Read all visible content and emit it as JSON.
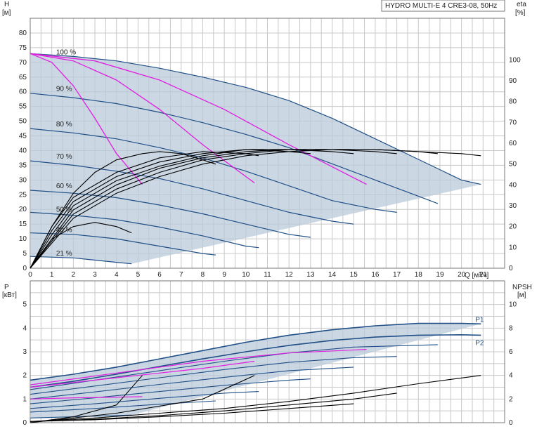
{
  "chart_data": [
    {
      "type": "line",
      "title": "HYDRO MULTI-E 4 CRE3-08, 50Hz",
      "xlabel": "Q [м³/ч]",
      "ylabel": "H",
      "ylabel_unit": "[м]",
      "y2label": "eta",
      "y2label_unit": "[%]",
      "xlim": [
        0,
        22
      ],
      "ylim": [
        0,
        85
      ],
      "y2lim": [
        0,
        120
      ],
      "x_ticks": [
        0,
        1,
        2,
        3,
        4,
        5,
        6,
        7,
        8,
        9,
        10,
        11,
        12,
        13,
        14,
        15,
        16,
        17,
        18,
        19,
        20,
        21
      ],
      "y_ticks": [
        0,
        5,
        10,
        15,
        20,
        25,
        30,
        35,
        40,
        45,
        50,
        55,
        60,
        65,
        70,
        75,
        80
      ],
      "y2_ticks": [
        0,
        10,
        20,
        30,
        40,
        50,
        60,
        70,
        80,
        90,
        100
      ],
      "grid": true,
      "speed_labels": [
        {
          "text": "100 %",
          "x": 1.2,
          "y": 72.5
        },
        {
          "text": "90 %",
          "x": 1.2,
          "y": 60
        },
        {
          "text": "80 %",
          "x": 1.2,
          "y": 48
        },
        {
          "text": "70 %",
          "x": 1.2,
          "y": 37
        },
        {
          "text": "60 %",
          "x": 1.2,
          "y": 27
        },
        {
          "text": "50 %",
          "x": 1.2,
          "y": 19
        },
        {
          "text": "40 %",
          "x": 1.2,
          "y": 12
        },
        {
          "text": "21 %",
          "x": 1.2,
          "y": 4
        }
      ],
      "series": [
        {
          "x": [
            0,
            2,
            4,
            6,
            8,
            10,
            12,
            14,
            16,
            18,
            20,
            20.9
          ],
          "values": [
            73,
            72,
            70.5,
            68,
            65,
            61.5,
            57,
            51,
            44,
            37,
            30,
            28.5
          ]
        },
        {
          "x": [
            0,
            2,
            4,
            6,
            8,
            10,
            12,
            14,
            16,
            18,
            18.9
          ],
          "values": [
            59.5,
            58,
            56,
            53,
            49.5,
            45.5,
            41,
            35.5,
            30,
            24.5,
            22
          ]
        },
        {
          "x": [
            0,
            2,
            4,
            6,
            8,
            10,
            12,
            14,
            16,
            17
          ],
          "values": [
            47.5,
            46,
            44,
            41,
            37.5,
            33,
            28,
            23,
            20,
            19
          ]
        },
        {
          "x": [
            0,
            2,
            4,
            6,
            8,
            10,
            12,
            14,
            15
          ],
          "values": [
            36.5,
            35,
            33,
            30.5,
            27,
            23,
            19,
            16,
            15
          ]
        },
        {
          "x": [
            0,
            2,
            4,
            6,
            8,
            10,
            12,
            13
          ],
          "values": [
            26.5,
            25.5,
            24,
            21.5,
            18.5,
            15,
            11.5,
            10.5
          ]
        },
        {
          "x": [
            0,
            2,
            4,
            6,
            8,
            10,
            10.6
          ],
          "values": [
            19,
            18,
            16.5,
            14,
            11,
            7.5,
            7
          ]
        },
        {
          "x": [
            0,
            2,
            4,
            6,
            8,
            8.6
          ],
          "values": [
            12,
            11.5,
            10,
            7.5,
            5,
            4.5
          ]
        },
        {
          "x": [
            0,
            2,
            4,
            4.7
          ],
          "values": [
            4,
            3.5,
            2,
            1.5
          ]
        }
      ],
      "system_curves": [
        {
          "x": [
            0,
            1,
            2,
            3,
            4,
            5.2
          ],
          "values": [
            73,
            70,
            62,
            51,
            39,
            28.5
          ]
        },
        {
          "x": [
            0,
            2,
            4,
            6,
            8,
            10.4
          ],
          "values": [
            73,
            70.5,
            64,
            54,
            42,
            29
          ]
        },
        {
          "x": [
            0,
            3,
            6,
            9,
            12,
            15.6
          ],
          "values": [
            73,
            70.5,
            64,
            54,
            42,
            28.5
          ]
        }
      ],
      "efficiency_curves": [
        {
          "x": [
            0,
            1,
            2,
            3,
            4,
            4.7
          ],
          "values": [
            0,
            14,
            20,
            22,
            20,
            17
          ]
        },
        {
          "x": [
            0,
            1,
            2,
            3,
            4,
            5.2,
            6,
            7,
            8,
            8.6
          ],
          "values": [
            0,
            20,
            36,
            46,
            52,
            55,
            56,
            55,
            52,
            50
          ]
        },
        {
          "x": [
            0,
            1,
            2,
            4,
            6,
            8,
            10,
            10.6
          ],
          "values": [
            0,
            20,
            34,
            46,
            53,
            56,
            55,
            54
          ]
        },
        {
          "x": [
            0,
            1,
            2,
            4,
            6,
            8,
            10,
            12,
            13
          ],
          "values": [
            0,
            18,
            32,
            44,
            51,
            55,
            57,
            56,
            55
          ]
        },
        {
          "x": [
            0,
            1,
            2,
            4,
            6,
            8,
            10,
            12,
            14,
            15
          ],
          "values": [
            0,
            16,
            30,
            42,
            49,
            54,
            57,
            57,
            56,
            55
          ]
        },
        {
          "x": [
            0,
            1,
            2,
            4,
            6,
            8,
            10,
            12,
            14,
            16,
            17
          ],
          "values": [
            0,
            14,
            28,
            40,
            48,
            53,
            56,
            57,
            57,
            56,
            55
          ]
        },
        {
          "x": [
            0,
            1,
            2,
            4,
            6,
            8,
            10,
            12,
            14,
            16,
            18,
            18.9
          ],
          "values": [
            0,
            13,
            26,
            38,
            46,
            52,
            55,
            57,
            57,
            57,
            56,
            55
          ]
        },
        {
          "x": [
            0,
            1,
            2,
            4,
            6,
            8,
            10,
            12,
            14,
            16,
            18,
            20,
            20.9
          ],
          "values": [
            0,
            12,
            24,
            36,
            44,
            50,
            54,
            56,
            57,
            57,
            56,
            55,
            54
          ]
        }
      ]
    },
    {
      "type": "line",
      "xlabel": "",
      "ylabel": "P",
      "ylabel_unit": "[кВт]",
      "y2label": "NPSH",
      "y2label_unit": "[м]",
      "xlim": [
        0,
        22
      ],
      "ylim": [
        0,
        6
      ],
      "y2lim": [
        0,
        12
      ],
      "y_ticks": [
        0,
        1,
        2,
        3,
        4,
        5
      ],
      "y2_ticks": [
        0,
        2,
        4,
        6,
        8,
        10
      ],
      "grid": true,
      "series": [
        {
          "name": "P1",
          "x": [
            0,
            2,
            4,
            6,
            8,
            10,
            12,
            14,
            16,
            18,
            20,
            20.9
          ],
          "values": [
            1.8,
            2.05,
            2.35,
            2.7,
            3.05,
            3.4,
            3.7,
            3.93,
            4.1,
            4.2,
            4.2,
            4.18
          ]
        },
        {
          "name": "P2",
          "x": [
            0,
            2,
            4,
            6,
            8,
            10,
            12,
            14,
            16,
            18,
            20,
            20.9
          ],
          "values": [
            1.5,
            1.75,
            2.05,
            2.38,
            2.7,
            3.0,
            3.27,
            3.48,
            3.62,
            3.7,
            3.72,
            3.7
          ]
        },
        {
          "x": [
            0,
            3,
            6,
            9,
            12,
            15,
            18.9
          ],
          "values": [
            1.4,
            1.8,
            2.2,
            2.6,
            2.95,
            3.2,
            3.3
          ]
        },
        {
          "x": [
            0,
            3,
            6,
            9,
            12,
            15,
            17
          ],
          "values": [
            1.2,
            1.55,
            1.9,
            2.25,
            2.55,
            2.75,
            2.8
          ]
        },
        {
          "x": [
            0,
            3,
            6,
            9,
            12,
            15
          ],
          "values": [
            1.0,
            1.3,
            1.62,
            1.92,
            2.2,
            2.35
          ]
        },
        {
          "x": [
            0,
            3,
            6,
            9,
            12,
            13
          ],
          "values": [
            0.8,
            1.05,
            1.32,
            1.58,
            1.8,
            1.85
          ]
        },
        {
          "x": [
            0,
            3,
            6,
            9,
            10.6
          ],
          "values": [
            0.6,
            0.8,
            1.03,
            1.25,
            1.32
          ]
        },
        {
          "x": [
            0,
            3,
            6,
            8.6
          ],
          "values": [
            0.45,
            0.6,
            0.78,
            0.92
          ]
        },
        {
          "x": [
            0,
            2,
            4,
            4.7
          ],
          "values": [
            0.2,
            0.25,
            0.3,
            0.32
          ]
        }
      ],
      "power_system_curves": [
        {
          "x": [
            0,
            2,
            4,
            5.2
          ],
          "values": [
            1.0,
            1.05,
            1.08,
            1.1
          ]
        },
        {
          "x": [
            0,
            3,
            6,
            8,
            10.4
          ],
          "values": [
            1.5,
            1.8,
            2.1,
            2.3,
            2.6
          ]
        },
        {
          "x": [
            0,
            4,
            8,
            12,
            15.6
          ],
          "values": [
            1.6,
            2.1,
            2.6,
            2.95,
            3.1
          ]
        }
      ],
      "npsh_curves": [
        {
          "x": [
            0,
            2,
            4,
            5.2
          ],
          "values": [
            0,
            0.5,
            1.5,
            4
          ]
        },
        {
          "x": [
            0,
            4,
            8,
            10.4
          ],
          "values": [
            0,
            0.8,
            2,
            4
          ]
        },
        {
          "x": [
            0,
            3,
            6,
            9,
            12,
            15,
            18,
            20.9
          ],
          "values": [
            0.1,
            0.4,
            0.8,
            1.2,
            1.8,
            2.5,
            3.3,
            4
          ]
        },
        {
          "x": [
            0,
            3,
            6,
            9,
            12,
            15,
            17
          ],
          "values": [
            0.1,
            0.3,
            0.6,
            1.0,
            1.5,
            2.0,
            2.5
          ]
        },
        {
          "x": [
            0,
            3,
            6,
            9,
            12,
            15
          ],
          "values": [
            0.1,
            0.25,
            0.5,
            0.8,
            1.2,
            1.6
          ]
        }
      ]
    }
  ]
}
